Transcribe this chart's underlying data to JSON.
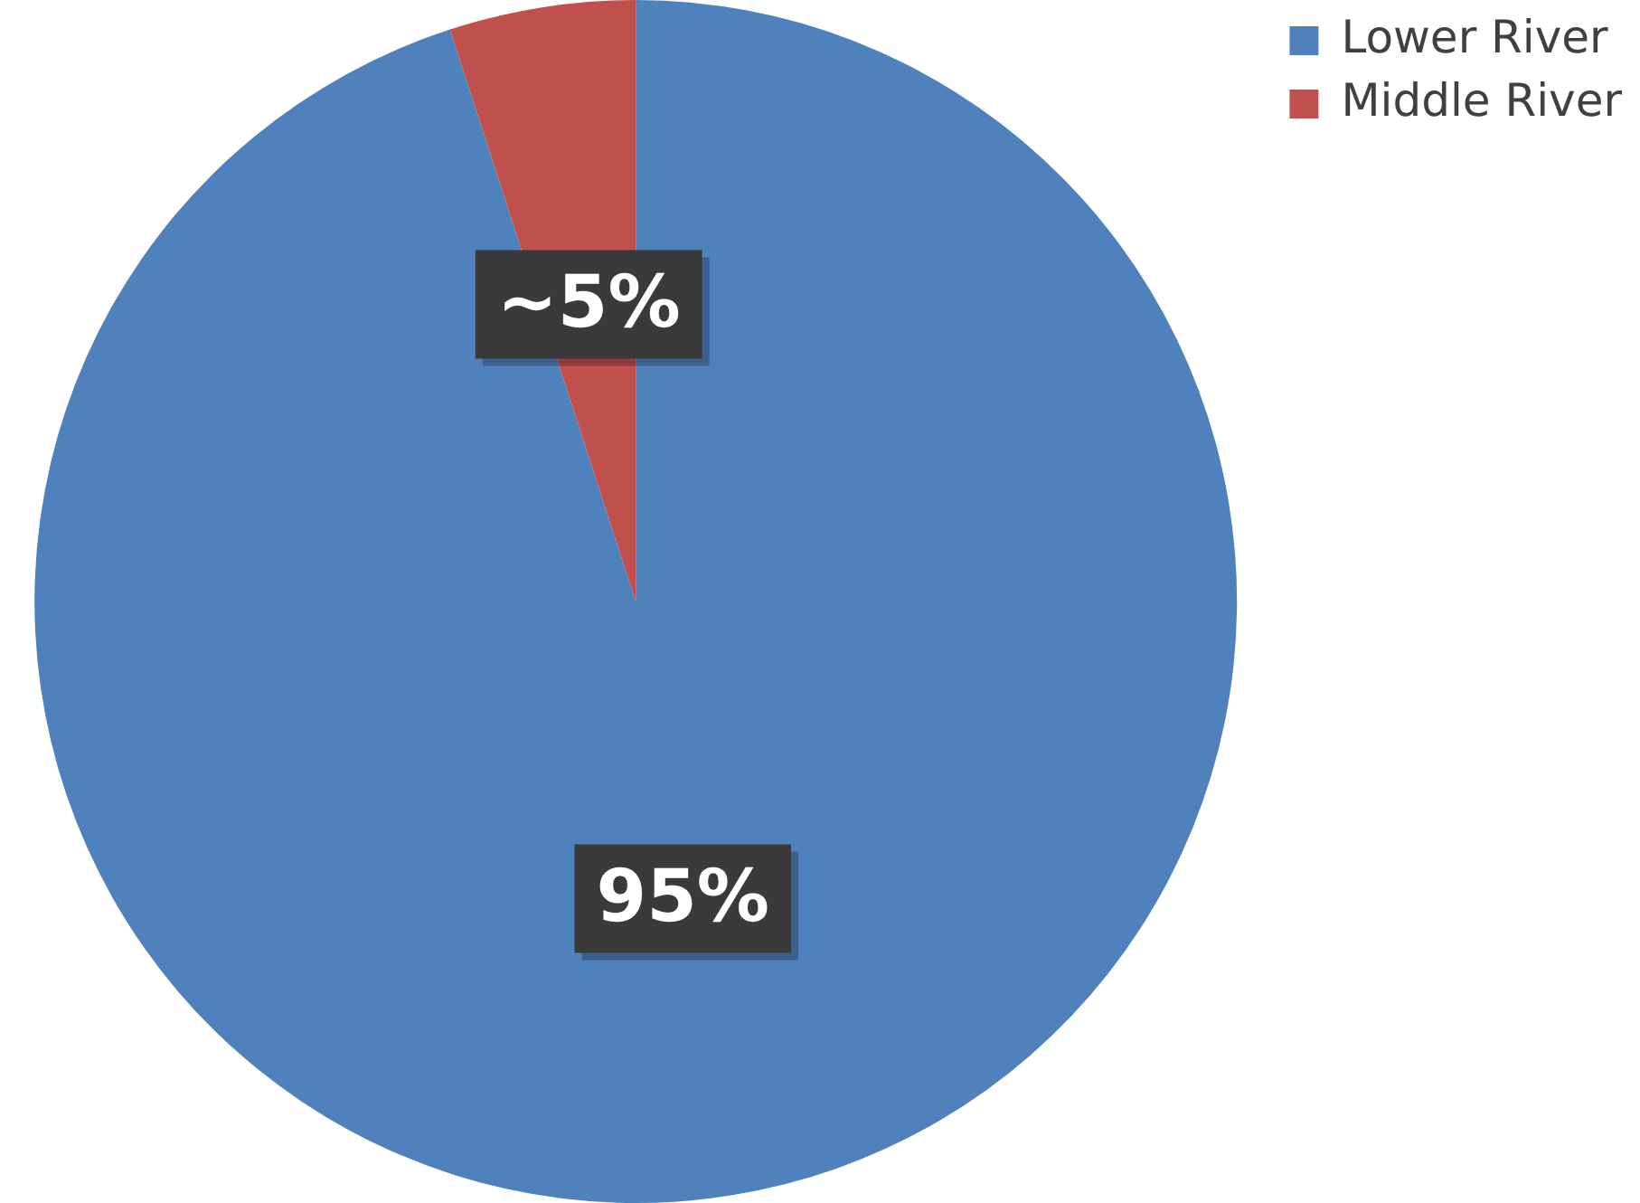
{
  "chart_data": {
    "type": "pie",
    "categories": [
      "Lower River",
      "Middle River"
    ],
    "values": [
      95,
      5
    ],
    "colors": [
      "#4f81bd",
      "#c0504d"
    ],
    "value_labels": [
      "95%",
      "~5%"
    ],
    "legend": "top right"
  }
}
